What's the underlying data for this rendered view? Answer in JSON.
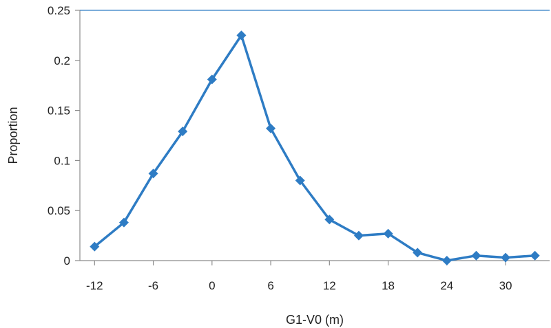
{
  "chart_data": {
    "type": "line",
    "xlabel": "G1-V0 (m)",
    "ylabel": "Proportion",
    "xlim": [
      -13.5,
      34.5
    ],
    "ylim": [
      0,
      0.25
    ],
    "x_ticks": [
      -12,
      -6,
      0,
      6,
      12,
      18,
      24,
      30
    ],
    "y_ticks": [
      0,
      0.05,
      0.1,
      0.15,
      0.2,
      0.25
    ],
    "x_tick_labels": [
      "-12",
      "-6",
      "0",
      "6",
      "12",
      "18",
      "24",
      "30"
    ],
    "y_tick_labels": [
      "0",
      "0.05",
      "0.1",
      "0.15",
      "0.2",
      "0.25"
    ],
    "grid": false,
    "legend": "none",
    "series": [
      {
        "color": "#2e7cc4",
        "marker": "diamond",
        "x": [
          -12,
          -9,
          -6,
          -3,
          0,
          3,
          6,
          9,
          12,
          15,
          18,
          21,
          24,
          27,
          30,
          33
        ],
        "y": [
          0.014,
          0.038,
          0.087,
          0.129,
          0.181,
          0.225,
          0.132,
          0.08,
          0.041,
          0.025,
          0.027,
          0.008,
          0.0,
          0.005,
          0.003,
          0.005
        ]
      }
    ]
  }
}
